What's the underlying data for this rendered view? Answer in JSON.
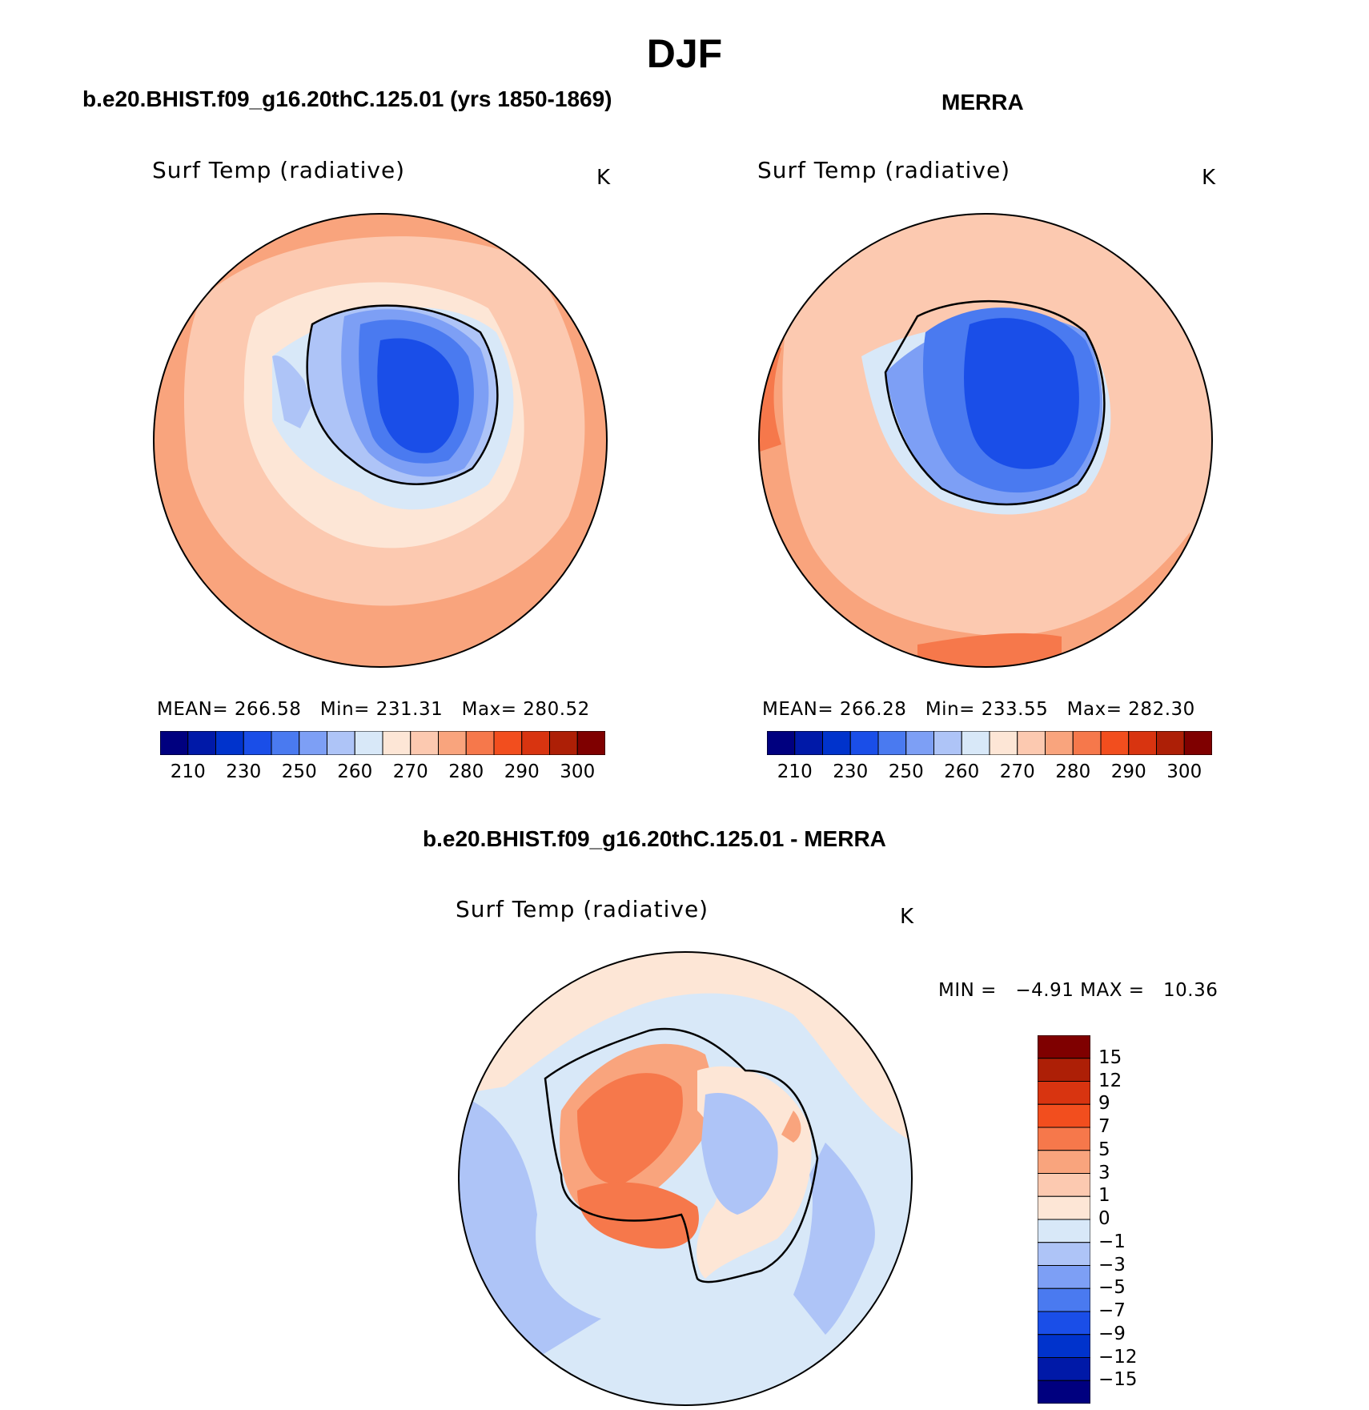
{
  "figure": {
    "title": "DJF"
  },
  "panels": [
    {
      "id": "model",
      "title": "b.e20.BHIST.f09_g16.20thC.125.01 (yrs 1850-1869)",
      "variable": "Surf Temp (radiative)",
      "units": "K",
      "stats": {
        "mean_label": "MEAN=",
        "mean": "266.58",
        "min_label": "Min=",
        "min": "231.31",
        "max_label": "Max=",
        "max": "280.52"
      }
    },
    {
      "id": "obs",
      "title": "MERRA",
      "variable": "Surf Temp (radiative)",
      "units": "K",
      "stats": {
        "mean_label": "MEAN=",
        "mean": "266.28",
        "min_label": "Min=",
        "min": "233.55",
        "max_label": "Max=",
        "max": "282.30"
      }
    },
    {
      "id": "diff",
      "title": "b.e20.BHIST.f09_g16.20thC.125.01 - MERRA",
      "variable": "Surf Temp (radiative)",
      "units": "K",
      "stats": {
        "min_label": "MIN =",
        "min": "−4.91",
        "max_label": "MAX =",
        "max": "10.36"
      }
    }
  ],
  "abs_colorbar": {
    "colors": [
      "#00007f",
      "#0019a8",
      "#0033cc",
      "#1a4ee8",
      "#4a7af0",
      "#7d9ff5",
      "#aec4f7",
      "#d8e8f8",
      "#fde6d6",
      "#fcc9b0",
      "#f9a47d",
      "#f6784b",
      "#f24e1e",
      "#d83410",
      "#ad1f06",
      "#7f0000"
    ],
    "tick_labels": [
      "210",
      "230",
      "250",
      "260",
      "270",
      "280",
      "290",
      "300"
    ]
  },
  "diff_colorbar": {
    "colors": [
      "#7f0000",
      "#ad1f06",
      "#d83410",
      "#f24e1e",
      "#f6784b",
      "#f9a47d",
      "#fcc9b0",
      "#fde6d6",
      "#d8e8f8",
      "#aec4f7",
      "#7d9ff5",
      "#4a7af0",
      "#1a4ee8",
      "#0033cc",
      "#0019a8",
      "#00007f"
    ],
    "tick_labels": [
      "15",
      "12",
      "9",
      "7",
      "5",
      "3",
      "1",
      "0",
      "−1",
      "−3",
      "−5",
      "−7",
      "−9",
      "−12",
      "−15"
    ]
  }
}
